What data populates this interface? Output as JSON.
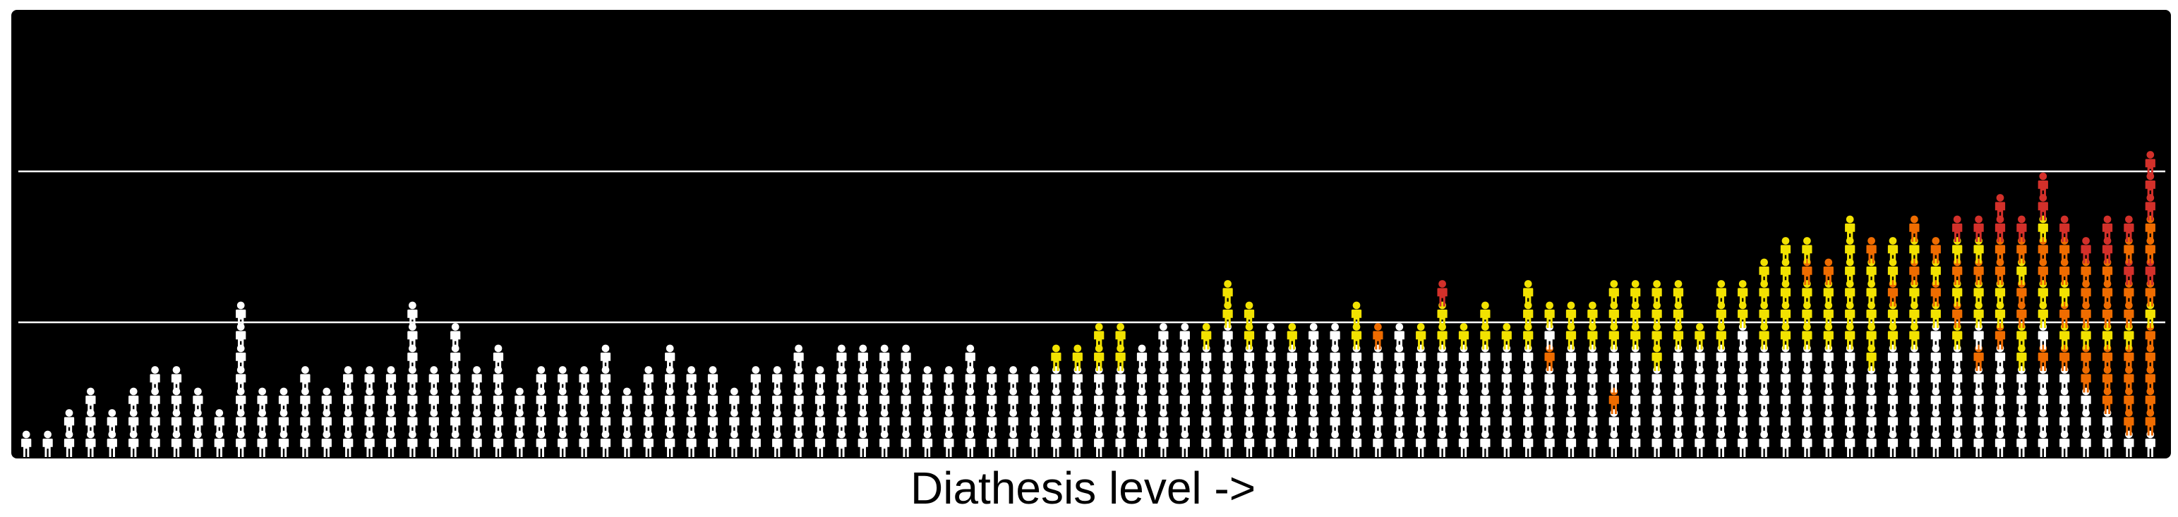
{
  "diagram": {
    "x_axis_label": "Diathesis level ->",
    "colors": {
      "background": "#000000",
      "unaffected": "#ffffff",
      "mild": "#f2e200",
      "moderate": "#ef6c00",
      "severe": "#d3302a"
    },
    "icon": "person-icon",
    "threshold_count": 2,
    "column_count": 100,
    "columns_description": "Stacks of person icons per diathesis bin (left = low, right = high); each stack lists people bottom-to-top by category",
    "stacks": [
      [
        "u"
      ],
      [
        "u"
      ],
      [
        "u",
        "u"
      ],
      [
        "u",
        "u",
        "u"
      ],
      [
        "u",
        "u"
      ],
      [
        "u",
        "u",
        "u"
      ],
      [
        "u",
        "u",
        "u",
        "u"
      ],
      [
        "u",
        "u",
        "u",
        "u"
      ],
      [
        "u",
        "u",
        "u"
      ],
      [
        "u",
        "u"
      ],
      [
        "u",
        "u",
        "u",
        "u",
        "u",
        "u",
        "u"
      ],
      [
        "u",
        "u",
        "u"
      ],
      [
        "u",
        "u",
        "u"
      ],
      [
        "u",
        "u",
        "u",
        "u"
      ],
      [
        "u",
        "u",
        "u"
      ],
      [
        "u",
        "u",
        "u",
        "u"
      ],
      [
        "u",
        "u",
        "u",
        "u"
      ],
      [
        "u",
        "u",
        "u",
        "u"
      ],
      [
        "u",
        "u",
        "u",
        "u",
        "u",
        "u",
        "u"
      ],
      [
        "u",
        "u",
        "u",
        "u"
      ],
      [
        "u",
        "u",
        "u",
        "u",
        "u",
        "u"
      ],
      [
        "u",
        "u",
        "u",
        "u"
      ],
      [
        "u",
        "u",
        "u",
        "u",
        "u"
      ],
      [
        "u",
        "u",
        "u"
      ],
      [
        "u",
        "u",
        "u",
        "u"
      ],
      [
        "u",
        "u",
        "u",
        "u"
      ],
      [
        "u",
        "u",
        "u",
        "u"
      ],
      [
        "u",
        "u",
        "u",
        "u",
        "u"
      ],
      [
        "u",
        "u",
        "u"
      ],
      [
        "u",
        "u",
        "u",
        "u"
      ],
      [
        "u",
        "u",
        "u",
        "u",
        "u"
      ],
      [
        "u",
        "u",
        "u",
        "u"
      ],
      [
        "u",
        "u",
        "u",
        "u"
      ],
      [
        "u",
        "u",
        "u"
      ],
      [
        "u",
        "u",
        "u",
        "u"
      ],
      [
        "u",
        "u",
        "u",
        "u"
      ],
      [
        "u",
        "u",
        "u",
        "u",
        "u"
      ],
      [
        "u",
        "u",
        "u",
        "u"
      ],
      [
        "u",
        "u",
        "u",
        "u",
        "u"
      ],
      [
        "u",
        "u",
        "u",
        "u",
        "u"
      ],
      [
        "u",
        "u",
        "u",
        "u",
        "u"
      ],
      [
        "u",
        "u",
        "u",
        "u",
        "u"
      ],
      [
        "u",
        "u",
        "u",
        "u"
      ],
      [
        "u",
        "u",
        "u",
        "u"
      ],
      [
        "u",
        "u",
        "u",
        "u",
        "u"
      ],
      [
        "u",
        "u",
        "u",
        "u"
      ],
      [
        "u",
        "u",
        "u",
        "u"
      ],
      [
        "u",
        "u",
        "u",
        "u"
      ],
      [
        "u",
        "u",
        "u",
        "u",
        "y"
      ],
      [
        "u",
        "u",
        "u",
        "u",
        "y"
      ],
      [
        "u",
        "u",
        "u",
        "u",
        "y",
        "y"
      ],
      [
        "u",
        "u",
        "u",
        "u",
        "y",
        "y"
      ],
      [
        "u",
        "u",
        "u",
        "u",
        "u"
      ],
      [
        "u",
        "u",
        "u",
        "u",
        "u",
        "u"
      ],
      [
        "u",
        "u",
        "u",
        "u",
        "u",
        "u"
      ],
      [
        "u",
        "u",
        "u",
        "u",
        "u",
        "y"
      ],
      [
        "u",
        "u",
        "u",
        "u",
        "u",
        "u",
        "y",
        "y"
      ],
      [
        "u",
        "u",
        "u",
        "u",
        "u",
        "y",
        "y"
      ],
      [
        "u",
        "u",
        "u",
        "u",
        "u",
        "u"
      ],
      [
        "u",
        "u",
        "u",
        "u",
        "u",
        "y"
      ],
      [
        "u",
        "u",
        "u",
        "u",
        "u",
        "u"
      ],
      [
        "u",
        "u",
        "u",
        "u",
        "u",
        "u"
      ],
      [
        "u",
        "u",
        "u",
        "u",
        "u",
        "y",
        "y"
      ],
      [
        "u",
        "u",
        "u",
        "u",
        "u",
        "o"
      ],
      [
        "u",
        "u",
        "u",
        "u",
        "u",
        "u"
      ],
      [
        "u",
        "u",
        "u",
        "u",
        "u",
        "y"
      ],
      [
        "u",
        "u",
        "u",
        "u",
        "u",
        "y",
        "y",
        "r"
      ],
      [
        "u",
        "u",
        "u",
        "u",
        "u",
        "y"
      ],
      [
        "u",
        "u",
        "u",
        "u",
        "u",
        "y",
        "y"
      ],
      [
        "u",
        "u",
        "u",
        "u",
        "u",
        "y"
      ],
      [
        "u",
        "u",
        "u",
        "u",
        "u",
        "y",
        "y",
        "y"
      ],
      [
        "u",
        "u",
        "u",
        "u",
        "o",
        "u",
        "y"
      ],
      [
        "u",
        "u",
        "u",
        "u",
        "u",
        "y",
        "y"
      ],
      [
        "u",
        "u",
        "u",
        "u",
        "u",
        "y",
        "y"
      ],
      [
        "u",
        "u",
        "o",
        "u",
        "u",
        "y",
        "y",
        "y"
      ],
      [
        "u",
        "u",
        "u",
        "u",
        "u",
        "y",
        "y",
        "y"
      ],
      [
        "u",
        "u",
        "u",
        "u",
        "y",
        "y",
        "y",
        "y"
      ],
      [
        "u",
        "u",
        "u",
        "u",
        "u",
        "y",
        "y",
        "y"
      ],
      [
        "u",
        "u",
        "u",
        "u",
        "u",
        "y"
      ],
      [
        "u",
        "u",
        "u",
        "u",
        "u",
        "y",
        "y",
        "y"
      ],
      [
        "u",
        "u",
        "u",
        "u",
        "u",
        "u",
        "y",
        "y"
      ],
      [
        "u",
        "u",
        "u",
        "u",
        "u",
        "y",
        "y",
        "y",
        "y"
      ],
      [
        "u",
        "u",
        "u",
        "u",
        "u",
        "y",
        "y",
        "y",
        "y",
        "y"
      ],
      [
        "u",
        "u",
        "u",
        "u",
        "u",
        "y",
        "y",
        "y",
        "o",
        "y"
      ],
      [
        "u",
        "u",
        "u",
        "u",
        "u",
        "y",
        "y",
        "y",
        "o"
      ],
      [
        "u",
        "u",
        "u",
        "u",
        "u",
        "y",
        "y",
        "y",
        "y",
        "y",
        "y"
      ],
      [
        "u",
        "u",
        "u",
        "u",
        "y",
        "y",
        "y",
        "y",
        "y",
        "o"
      ],
      [
        "u",
        "u",
        "u",
        "u",
        "u",
        "y",
        "y",
        "o",
        "y",
        "y"
      ],
      [
        "u",
        "u",
        "u",
        "u",
        "u",
        "y",
        "y",
        "y",
        "o",
        "y",
        "o"
      ],
      [
        "u",
        "u",
        "u",
        "u",
        "u",
        "u",
        "y",
        "o",
        "y",
        "o"
      ],
      [
        "u",
        "u",
        "u",
        "u",
        "u",
        "y",
        "o",
        "y",
        "o",
        "y",
        "r"
      ],
      [
        "u",
        "u",
        "u",
        "u",
        "o",
        "u",
        "y",
        "y",
        "o",
        "y",
        "r"
      ],
      [
        "u",
        "u",
        "u",
        "u",
        "u",
        "o",
        "y",
        "y",
        "o",
        "o",
        "r",
        "r"
      ],
      [
        "u",
        "u",
        "u",
        "u",
        "y",
        "y",
        "o",
        "o",
        "y",
        "o",
        "r"
      ],
      [
        "u",
        "u",
        "u",
        "u",
        "o",
        "u",
        "y",
        "y",
        "o",
        "o",
        "y",
        "r",
        "r"
      ],
      [
        "u",
        "u",
        "u",
        "u",
        "o",
        "y",
        "o",
        "y",
        "o",
        "o",
        "r"
      ],
      [
        "u",
        "u",
        "u",
        "o",
        "o",
        "y",
        "o",
        "o",
        "o",
        "r"
      ],
      [
        "u",
        "u",
        "o",
        "o",
        "o",
        "y",
        "o",
        "o",
        "o",
        "r",
        "r"
      ],
      [
        "u",
        "o",
        "o",
        "o",
        "o",
        "y",
        "o",
        "o",
        "r",
        "o",
        "r"
      ],
      [
        "u",
        "o",
        "o",
        "o",
        "o",
        "o",
        "y",
        "o",
        "r",
        "o",
        "o",
        "r",
        "r",
        "r"
      ]
    ]
  }
}
